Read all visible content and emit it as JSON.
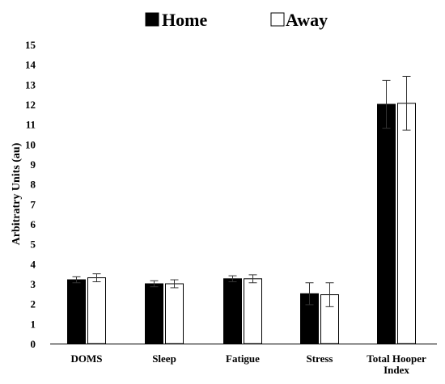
{
  "chart_data": {
    "type": "bar",
    "title": "",
    "xlabel": "",
    "ylabel": "Arbitratry Units (au)",
    "ylim": [
      0,
      15
    ],
    "yticks": [
      0,
      1,
      2,
      3,
      4,
      5,
      6,
      7,
      8,
      9,
      10,
      11,
      12,
      13,
      14,
      15
    ],
    "grid": false,
    "legend_position": "top",
    "categories": [
      "DOMS",
      "Sleep",
      "Fatigue",
      "Stress",
      "Total Hooper Index"
    ],
    "category_labels": [
      [
        "DOMS"
      ],
      [
        "Sleep"
      ],
      [
        "Fatigue"
      ],
      [
        "Stress"
      ],
      [
        "Total Hooper",
        "Index"
      ]
    ],
    "series": [
      {
        "name": "Home",
        "color": "#000000",
        "values": [
          3.2,
          3.0,
          3.25,
          2.5,
          12.0
        ],
        "errors": [
          0.15,
          0.15,
          0.15,
          0.55,
          1.2
        ]
      },
      {
        "name": "Away",
        "color": "#ffffff",
        "values": [
          3.3,
          3.0,
          3.25,
          2.45,
          12.05
        ],
        "errors": [
          0.2,
          0.2,
          0.2,
          0.6,
          1.35
        ]
      }
    ]
  }
}
